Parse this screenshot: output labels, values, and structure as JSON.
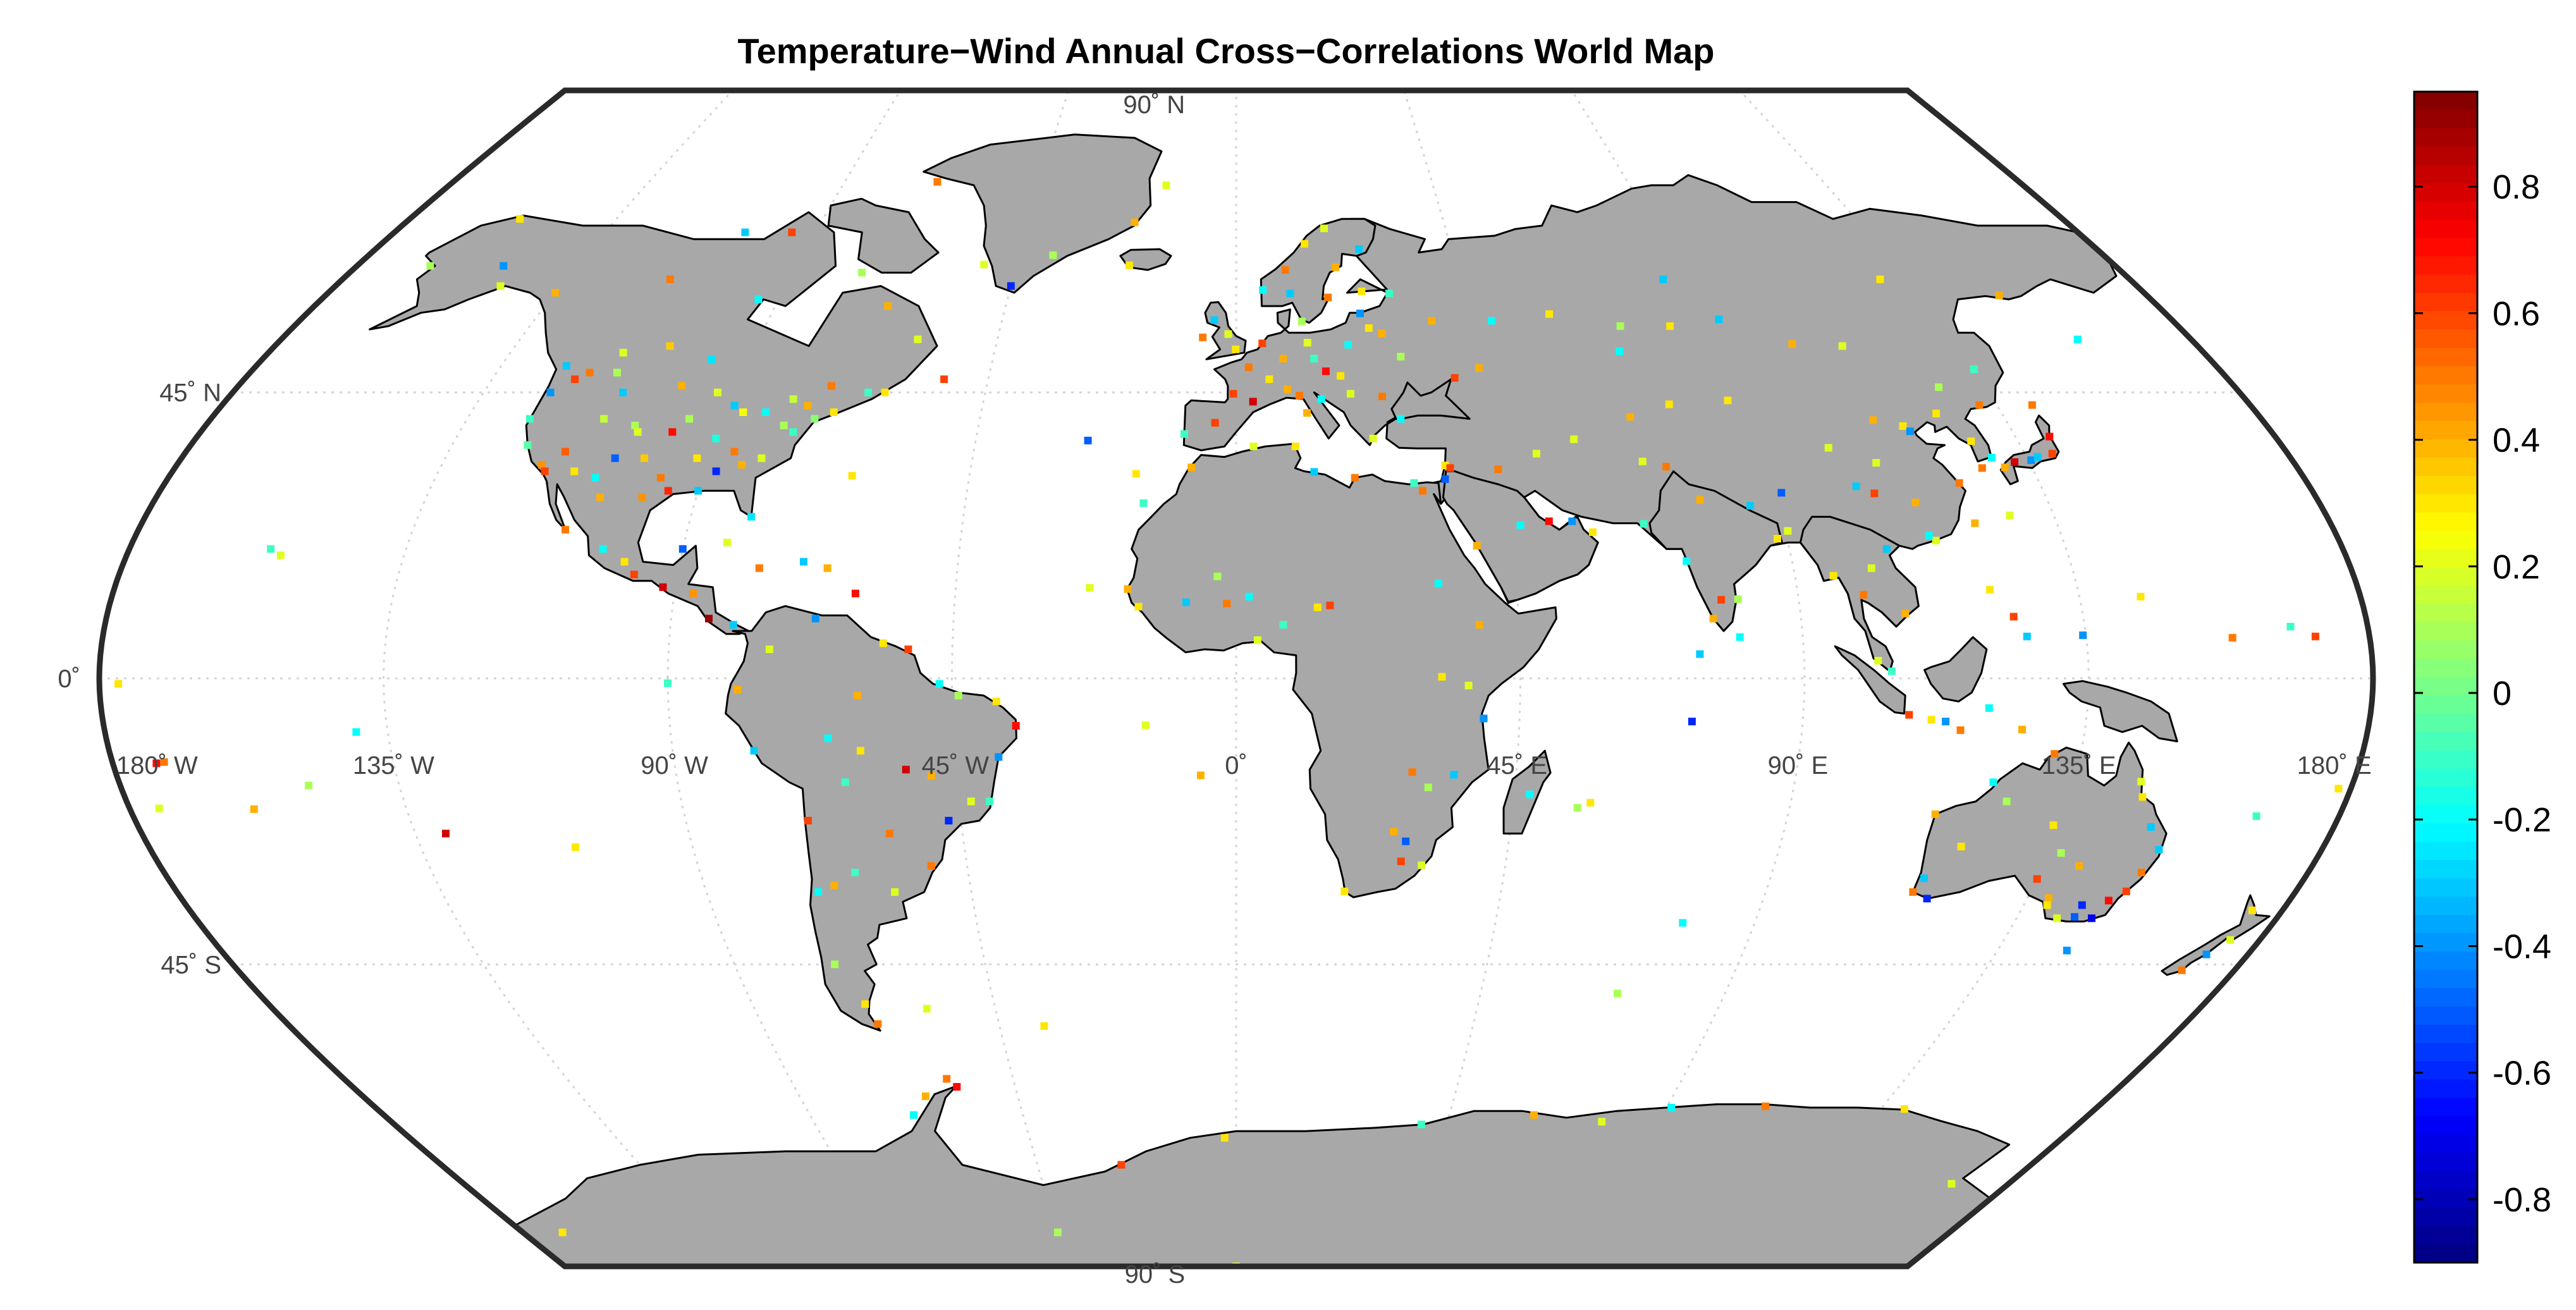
{
  "title": "Temperature−Wind Annual Cross−Correlations World Map",
  "colors": {
    "land": "#a8a8a8",
    "coast": "#000000",
    "ocean": "#ffffff",
    "grid": "#d4d4d4",
    "frame": "#2a2a2a"
  },
  "map": {
    "projection": "robinson-like",
    "lat_labels": [
      {
        "lat": 90,
        "text": "90˚ N"
      },
      {
        "lat": 45,
        "text": "45˚ N"
      },
      {
        "lat": 0,
        "text": "0˚"
      },
      {
        "lat": -45,
        "text": "45˚ S"
      },
      {
        "lat": -90,
        "text": "90˚ S"
      }
    ],
    "lon_labels": [
      {
        "lon": -180,
        "text": "180˚ W"
      },
      {
        "lon": -135,
        "text": "135˚ W"
      },
      {
        "lon": -90,
        "text": "90˚ W"
      },
      {
        "lon": -45,
        "text": "45˚ W"
      },
      {
        "lon": 0,
        "text": "0˚"
      },
      {
        "lon": 45,
        "text": "45˚ E"
      },
      {
        "lon": 90,
        "text": "90˚ E"
      },
      {
        "lon": 135,
        "text": "135˚ E"
      },
      {
        "lon": 180,
        "text": "180˚ E"
      }
    ]
  },
  "colorbar": {
    "min": -0.9,
    "max": 0.95,
    "colormap": "jet",
    "ticks": [
      {
        "value": 0.8,
        "label": "0.8"
      },
      {
        "value": 0.6,
        "label": "0.6"
      },
      {
        "value": 0.4,
        "label": "0.4"
      },
      {
        "value": 0.2,
        "label": "0.2"
      },
      {
        "value": 0,
        "label": "0"
      },
      {
        "value": -0.2,
        "label": "-0.2"
      },
      {
        "value": -0.4,
        "label": "-0.4"
      },
      {
        "value": -0.6,
        "label": "-0.6"
      },
      {
        "value": -0.8,
        "label": "-0.8"
      }
    ]
  },
  "stations": [
    [
      -122,
      37,
      -0.05
    ],
    [
      -118,
      34,
      0.45
    ],
    [
      -117,
      33,
      0.6
    ],
    [
      -112,
      33,
      0.3
    ],
    [
      -105,
      40,
      0.1
    ],
    [
      -104,
      39,
      0.2
    ],
    [
      -97,
      32,
      0.5
    ],
    [
      -95,
      30,
      0.65
    ],
    [
      -90,
      30,
      -0.3
    ],
    [
      -87,
      42,
      0.25
    ],
    [
      -84,
      34,
      0.4
    ],
    [
      -80,
      26,
      -0.25
    ],
    [
      -77,
      39,
      -0.1
    ],
    [
      -74,
      41,
      0.05
    ],
    [
      -71,
      42,
      0.3
    ],
    [
      -100,
      46,
      0.4
    ],
    [
      -93,
      45,
      0.2
    ],
    [
      -83,
      42,
      -0.2
    ],
    [
      -110,
      45,
      -0.3
    ],
    [
      -120,
      47,
      0.6
    ],
    [
      -123,
      45,
      -0.4
    ],
    [
      -86,
      36,
      0.5
    ],
    [
      -90,
      38,
      -0.15
    ],
    [
      -96,
      41,
      0.1
    ],
    [
      -101,
      35,
      0.35
    ],
    [
      -106,
      35,
      -0.5
    ],
    [
      -115,
      36,
      0.55
    ],
    [
      -111,
      41,
      0.15
    ],
    [
      -98,
      39,
      0.7
    ],
    [
      -89,
      43,
      -0.3
    ],
    [
      -81,
      35,
      0.2
    ],
    [
      -76,
      43,
      0.4
    ],
    [
      -79,
      40,
      0.1
    ],
    [
      -88,
      33,
      -0.6
    ],
    [
      -92,
      35,
      0.3
    ],
    [
      -99,
      29,
      0.45
    ],
    [
      -108,
      32,
      -0.2
    ],
    [
      -113,
      48,
      0.1
    ],
    [
      -118,
      48,
      0.5
    ],
    [
      -124,
      41,
      -0.1
    ],
    [
      -114,
      51,
      0.2
    ],
    [
      -106,
      52,
      0.35
    ],
    [
      -97,
      50,
      -0.25
    ],
    [
      -79,
      44,
      0.15
    ],
    [
      -73,
      46,
      0.5
    ],
    [
      -66,
      45,
      -0.1
    ],
    [
      -63,
      45,
      0.3
    ],
    [
      -53,
      47,
      0.6
    ],
    [
      -123,
      49,
      -0.3
    ],
    [
      -135,
      60,
      0.4
    ],
    [
      -147,
      61,
      0.2
    ],
    [
      -150,
      64,
      -0.4
    ],
    [
      -165,
      64,
      0.1
    ],
    [
      -156,
      71,
      0.3
    ],
    [
      -114,
      62,
      0.5
    ],
    [
      -94,
      59,
      -0.2
    ],
    [
      -68,
      58,
      0.4
    ],
    [
      -76,
      63,
      0.1
    ],
    [
      -95,
      69,
      0.6
    ],
    [
      -105,
      69,
      -0.3
    ],
    [
      -60,
      53,
      0.2
    ],
    [
      -99,
      19,
      0.3
    ],
    [
      -103,
      21,
      -0.2
    ],
    [
      -110,
      24,
      0.5
    ],
    [
      -106,
      29,
      0.4
    ],
    [
      -90,
      21,
      -0.5
    ],
    [
      -97,
      17,
      0.6
    ],
    [
      -92,
      15,
      0.8
    ],
    [
      -87,
      14,
      0.45
    ],
    [
      -84,
      10,
      0.9
    ],
    [
      -80,
      9,
      -0.3
    ],
    [
      -83,
      22,
      0.2
    ],
    [
      -77,
      18,
      0.5
    ],
    [
      -70,
      19,
      -0.3
    ],
    [
      -66,
      18,
      0.4
    ],
    [
      -61,
      14,
      0.7
    ],
    [
      -157,
      21,
      -0.1
    ],
    [
      -155,
      20,
      0.2
    ],
    [
      -60,
      -3,
      0.4
    ],
    [
      -47,
      -1,
      -0.2
    ],
    [
      -38,
      -4,
      0.3
    ],
    [
      -35,
      -8,
      0.7
    ],
    [
      -38,
      -13,
      -0.4
    ],
    [
      -43,
      -20,
      0.2
    ],
    [
      -47,
      -23,
      -0.6
    ],
    [
      -51,
      -30,
      0.5
    ],
    [
      -58,
      -34,
      0.2
    ],
    [
      -64,
      -31,
      -0.1
    ],
    [
      -68,
      -33,
      0.4
    ],
    [
      -70,
      -23,
      0.6
    ],
    [
      -71,
      -34,
      -0.2
    ],
    [
      -72,
      -45,
      0.1
    ],
    [
      -69,
      -51,
      0.3
    ],
    [
      -68,
      -54,
      0.5
    ],
    [
      -77,
      -12,
      -0.3
    ],
    [
      -79,
      -2,
      0.4
    ],
    [
      -74,
      5,
      0.2
    ],
    [
      -67,
      10,
      -0.4
    ],
    [
      -56,
      6,
      0.3
    ],
    [
      -52,
      5,
      0.6
    ],
    [
      -63,
      -17,
      -0.1
    ],
    [
      -57,
      -25,
      0.5
    ],
    [
      -53,
      -15,
      0.8
    ],
    [
      -44,
      -3,
      0.1
    ],
    [
      -60,
      -12,
      0.3
    ],
    [
      -65,
      -10,
      -0.2
    ],
    [
      -49,
      -16,
      0.4
    ],
    [
      -40,
      -20,
      -0.1
    ],
    [
      -0.1,
      51.5,
      0.3
    ],
    [
      2.3,
      48.8,
      0.5
    ],
    [
      -3.7,
      40.4,
      0.6
    ],
    [
      -9,
      38.7,
      -0.1
    ],
    [
      12.5,
      41.9,
      0.4
    ],
    [
      13.4,
      52.5,
      0.2
    ],
    [
      16.4,
      48.2,
      0.7
    ],
    [
      21,
      52.2,
      -0.2
    ],
    [
      24.9,
      60.2,
      0.3
    ],
    [
      18.1,
      59.3,
      0.5
    ],
    [
      10.7,
      59.9,
      -0.3
    ],
    [
      12.6,
      55.7,
      0.1
    ],
    [
      4.9,
      52.4,
      0.6
    ],
    [
      8.7,
      50.1,
      0.4
    ],
    [
      14.4,
      50.1,
      -0.1
    ],
    [
      19,
      47.5,
      0.3
    ],
    [
      26.1,
      44.4,
      0.5
    ],
    [
      23.7,
      38,
      0.2
    ],
    [
      28.9,
      41,
      -0.2
    ],
    [
      37.6,
      55.8,
      0.4
    ],
    [
      30.3,
      59.9,
      -0.1
    ],
    [
      -6.3,
      53.3,
      0.5
    ],
    [
      -4.2,
      55.9,
      -0.3
    ],
    [
      -1.5,
      53.8,
      0.2
    ],
    [
      6,
      47,
      0.3
    ],
    [
      -0.5,
      44.8,
      0.6
    ],
    [
      3,
      43.6,
      0.8
    ],
    [
      9.2,
      45.5,
      0.4
    ],
    [
      11.3,
      44.5,
      0.5
    ],
    [
      15.2,
      44,
      -0.2
    ],
    [
      20.5,
      44.8,
      0.2
    ],
    [
      27.6,
      53.9,
      0.4
    ],
    [
      30.5,
      50.4,
      0.1
    ],
    [
      24,
      56.9,
      -0.4
    ],
    [
      25.3,
      54.7,
      0.3
    ],
    [
      10,
      63.4,
      0.5
    ],
    [
      5.3,
      60.4,
      -0.2
    ],
    [
      14.4,
      67.3,
      0.3
    ],
    [
      18.9,
      69.6,
      0.2
    ],
    [
      25.7,
      66.5,
      -0.3
    ],
    [
      20.3,
      63.8,
      0.4
    ],
    [
      -21.9,
      64.1,
      0.3
    ],
    [
      -51.7,
      64.2,
      0.2
    ],
    [
      -45,
      61,
      -0.6
    ],
    [
      -38,
      65.6,
      0.1
    ],
    [
      -22,
      70.5,
      0.4
    ],
    [
      -68.7,
      76.5,
      0.5
    ],
    [
      -16,
      76,
      0.2
    ],
    [
      -3,
      16.7,
      0.1
    ],
    [
      2.1,
      13.5,
      -0.2
    ],
    [
      -17.4,
      14.7,
      0.4
    ],
    [
      -15.6,
      11.9,
      0.3
    ],
    [
      -8,
      12.6,
      -0.3
    ],
    [
      -1.5,
      12.4,
      0.5
    ],
    [
      3.4,
      6.5,
      0.2
    ],
    [
      7.5,
      9,
      -0.1
    ],
    [
      13,
      11.8,
      0.3
    ],
    [
      15,
      12.1,
      0.6
    ],
    [
      32.5,
      15.6,
      -0.2
    ],
    [
      38.7,
      9,
      0.4
    ],
    [
      36.8,
      -1.3,
      0.2
    ],
    [
      39.3,
      -6.8,
      -0.4
    ],
    [
      32.6,
      0.3,
      0.3
    ],
    [
      28.3,
      -15.4,
      0.5
    ],
    [
      31,
      -17.8,
      0.1
    ],
    [
      35,
      -15.8,
      -0.3
    ],
    [
      25.9,
      -24.7,
      0.4
    ],
    [
      28,
      -26.2,
      -0.5
    ],
    [
      18.4,
      -33.9,
      0.3
    ],
    [
      31,
      -29.9,
      0.2
    ],
    [
      27.5,
      -29.3,
      0.6
    ],
    [
      47.5,
      -18.9,
      -0.2
    ],
    [
      57.5,
      -20.2,
      0.3
    ],
    [
      55.5,
      -21,
      0.1
    ],
    [
      31.2,
      30,
      0.5
    ],
    [
      29.9,
      31.2,
      -0.1
    ],
    [
      10.2,
      36.8,
      0.3
    ],
    [
      3,
      36.8,
      0.2
    ],
    [
      -7.6,
      33.6,
      0.4
    ],
    [
      13.2,
      32.9,
      -0.3
    ],
    [
      20,
      32,
      0.5
    ],
    [
      35.2,
      31.8,
      -0.5
    ],
    [
      35.5,
      33.9,
      0.3
    ],
    [
      36.3,
      33.5,
      0.6
    ],
    [
      44.4,
      33.3,
      0.5
    ],
    [
      51.4,
      35.7,
      0.2
    ],
    [
      46.7,
      24.7,
      -0.2
    ],
    [
      39.2,
      21.5,
      0.4
    ],
    [
      55.3,
      25.3,
      -0.4
    ],
    [
      58.4,
      23.6,
      0.3
    ],
    [
      51.5,
      25.3,
      0.7
    ],
    [
      69.2,
      34.5,
      0.2
    ],
    [
      67,
      24.9,
      -0.1
    ],
    [
      73,
      33.7,
      0.5
    ],
    [
      77.2,
      28.6,
      0.4
    ],
    [
      72.9,
      19.1,
      -0.2
    ],
    [
      88.4,
      22.6,
      0.3
    ],
    [
      80.3,
      13.1,
      0.1
    ],
    [
      77.6,
      13,
      0.6
    ],
    [
      85.3,
      27.7,
      -0.3
    ],
    [
      90.4,
      23.8,
      0.2
    ],
    [
      76,
      10,
      0.4
    ],
    [
      80,
      7,
      -0.2
    ],
    [
      96.2,
      16.8,
      0.3
    ],
    [
      100.5,
      13.8,
      0.5
    ],
    [
      102.6,
      18,
      0.2
    ],
    [
      105.8,
      21,
      -0.3
    ],
    [
      106.7,
      10.8,
      0.4
    ],
    [
      101.7,
      3.1,
      0.2
    ],
    [
      103.8,
      1.3,
      -0.1
    ],
    [
      106.8,
      -6.2,
      0.6
    ],
    [
      110.4,
      -7,
      0.3
    ],
    [
      112.7,
      -7.3,
      -0.4
    ],
    [
      115.2,
      -8.7,
      0.5
    ],
    [
      119.4,
      -5.1,
      -0.2
    ],
    [
      125,
      -8.6,
      0.4
    ],
    [
      120.9,
      14.6,
      0.3
    ],
    [
      123.9,
      10.3,
      0.6
    ],
    [
      125.6,
      7.1,
      -0.3
    ],
    [
      121.5,
      25,
      0.4
    ],
    [
      114.2,
      22.3,
      0.2
    ],
    [
      113.3,
      23.1,
      -0.2
    ],
    [
      116.4,
      39.9,
      0.3
    ],
    [
      121.5,
      31.2,
      0.5
    ],
    [
      104,
      30.7,
      -0.3
    ],
    [
      108.9,
      34.3,
      0.2
    ],
    [
      112.9,
      28.2,
      0.4
    ],
    [
      117.2,
      39.1,
      -0.4
    ],
    [
      123.4,
      41.8,
      0.3
    ],
    [
      126.6,
      45.8,
      0.1
    ],
    [
      87.6,
      43.8,
      0.3
    ],
    [
      91.1,
      29.7,
      -0.5
    ],
    [
      101.8,
      36.6,
      0.2
    ],
    [
      106.6,
      29.6,
      0.6
    ],
    [
      111.7,
      40.8,
      0.4
    ],
    [
      126.9,
      37.6,
      0.3
    ],
    [
      129,
      35.1,
      -0.2
    ],
    [
      126.5,
      33.5,
      0.5
    ],
    [
      139.7,
      35.7,
      0.6
    ],
    [
      135.5,
      34.7,
      -0.4
    ],
    [
      130.4,
      33.6,
      0.4
    ],
    [
      141.3,
      43.1,
      0.5
    ],
    [
      140.9,
      38.3,
      0.7
    ],
    [
      136.9,
      35.2,
      -0.3
    ],
    [
      127.7,
      26.2,
      0.2
    ],
    [
      132.5,
      34.4,
      0.8
    ],
    [
      76.9,
      43.2,
      0.3
    ],
    [
      71.4,
      51.2,
      -0.2
    ],
    [
      69.3,
      41.3,
      0.4
    ],
    [
      58.4,
      37.9,
      0.2
    ],
    [
      82.9,
      55,
      0.3
    ],
    [
      92.9,
      56,
      -0.3
    ],
    [
      104.3,
      52.3,
      0.4
    ],
    [
      113.5,
      52,
      0.2
    ],
    [
      131.9,
      43.1,
      0.5
    ],
    [
      135.1,
      48.5,
      -0.1
    ],
    [
      60.6,
      56.8,
      0.3
    ],
    [
      49.1,
      55.8,
      -0.2
    ],
    [
      44.5,
      48.7,
      0.4
    ],
    [
      39.7,
      47.2,
      0.6
    ],
    [
      73.4,
      55,
      0.1
    ],
    [
      86,
      62,
      -0.3
    ],
    [
      129.7,
      62,
      0.3
    ],
    [
      150.8,
      59.6,
      0.4
    ],
    [
      158.6,
      53,
      -0.2
    ],
    [
      115.9,
      -31.9,
      -0.3
    ],
    [
      115,
      -34,
      0.5
    ],
    [
      117.9,
      -35,
      -0.6
    ],
    [
      138.6,
      -34.9,
      0.4
    ],
    [
      144.9,
      -37.8,
      -0.5
    ],
    [
      151.2,
      -33.9,
      0.6
    ],
    [
      153,
      -27.5,
      -0.3
    ],
    [
      146.8,
      -19.3,
      0.3
    ],
    [
      145.8,
      -16.9,
      0.2
    ],
    [
      130.8,
      -12.5,
      0.5
    ],
    [
      133.9,
      -23.7,
      0.3
    ],
    [
      147.3,
      -42.9,
      -0.4
    ],
    [
      149.1,
      -35.3,
      0.7
    ],
    [
      145,
      -36,
      -0.6
    ],
    [
      142,
      -38,
      0.2
    ],
    [
      141,
      -30,
      0.4
    ],
    [
      137,
      -28,
      0.1
    ],
    [
      120,
      -27,
      0.3
    ],
    [
      122,
      -17,
      -0.2
    ],
    [
      114,
      -22,
      0.4
    ],
    [
      125,
      -20,
      0.1
    ],
    [
      150,
      -24,
      -0.3
    ],
    [
      152,
      -31,
      0.5
    ],
    [
      148,
      -38,
      -0.7
    ],
    [
      139,
      -36,
      0.3
    ],
    [
      135,
      -32,
      0.6
    ],
    [
      174.8,
      -36.8,
      0.3
    ],
    [
      174.8,
      -41.3,
      0.2
    ],
    [
      172.6,
      -43.5,
      -0.4
    ],
    [
      170.5,
      -45.9,
      0.5
    ],
    [
      178,
      -18,
      0.3
    ],
    [
      166.5,
      -22.3,
      -0.1
    ],
    [
      -149.6,
      -17.5,
      0.1
    ],
    [
      -171.7,
      -13.8,
      0.5
    ],
    [
      -175.2,
      -21.1,
      0.2
    ],
    [
      -159.8,
      -21.2,
      0.4
    ],
    [
      -140,
      -9,
      -0.2
    ],
    [
      -130,
      -25,
      0.8
    ],
    [
      -177,
      -1,
      0.3
    ],
    [
      -173,
      -14,
      0.7
    ],
    [
      144.8,
      13.5,
      0.3
    ],
    [
      158.2,
      6.9,
      0.5
    ],
    [
      167.7,
      8.7,
      -0.1
    ],
    [
      171.4,
      7.1,
      0.6
    ],
    [
      134.5,
      7.3,
      -0.4
    ],
    [
      -109.4,
      -27.1,
      0.3
    ],
    [
      -90,
      -0.9,
      -0.1
    ],
    [
      -14.4,
      -7.9,
      0.2
    ],
    [
      -5.7,
      -15.9,
      0.4
    ],
    [
      -25.6,
      37.7,
      -0.5
    ],
    [
      -16.9,
      32.6,
      0.3
    ],
    [
      -15.4,
      28.1,
      -0.1
    ],
    [
      -23.5,
      14.9,
      0.2
    ],
    [
      -64.8,
      32.3,
      0.3
    ],
    [
      73.5,
      4.2,
      -0.3
    ],
    [
      72.4,
      -7.3,
      -0.6
    ],
    [
      77.5,
      -38.7,
      -0.2
    ],
    [
      70.2,
      -49.4,
      0.1
    ],
    [
      -57.8,
      -51.7,
      0.2
    ],
    [
      -36.5,
      -54.3,
      0.3
    ],
    [
      -58.4,
      -62.2,
      0.5
    ],
    [
      -56.9,
      -63.4,
      0.7
    ],
    [
      -64,
      -64.8,
      0.4
    ],
    [
      -68.1,
      -67.6,
      -0.2
    ],
    [
      -2.5,
      -71,
      0.3
    ],
    [
      39.6,
      -69,
      -0.1
    ],
    [
      62.9,
      -67.6,
      0.4
    ],
    [
      77.9,
      -68.6,
      0.2
    ],
    [
      110.5,
      -66.3,
      0.5
    ],
    [
      140,
      -66.7,
      0.3
    ],
    [
      166.7,
      -77.8,
      0.2
    ],
    [
      -45,
      -85,
      0.1
    ],
    [
      0,
      -90,
      0.2
    ],
    [
      -170,
      -85,
      0.3
    ],
    [
      91,
      -66.5,
      -0.2
    ],
    [
      -26,
      -75,
      0.6
    ]
  ]
}
